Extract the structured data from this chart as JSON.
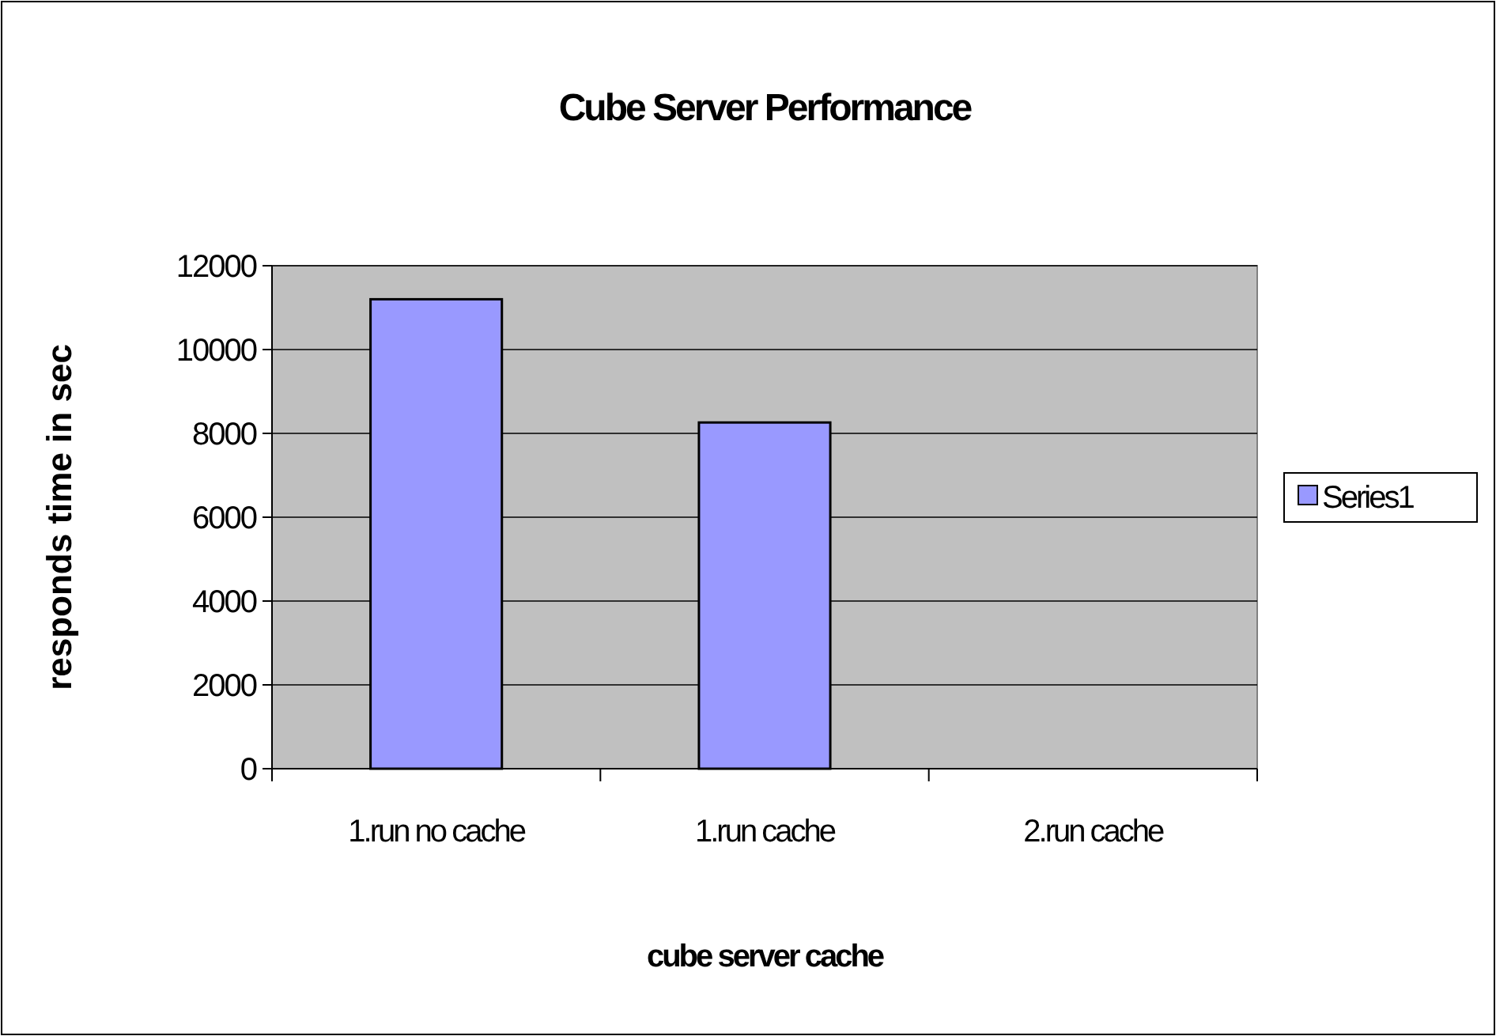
{
  "chart_data": {
    "type": "bar",
    "title": "Cube Server Performance",
    "xlabel": "cube server cache",
    "ylabel": "responds time in sec",
    "categories": [
      "1.run no cache",
      "1.run cache",
      "2.run cache"
    ],
    "series": [
      {
        "name": "Series1",
        "color": "#9999ff",
        "values": [
          11200,
          8260,
          null
        ]
      }
    ],
    "ylim": [
      0,
      12000
    ],
    "yticks": [
      0,
      2000,
      4000,
      6000,
      8000,
      10000,
      12000
    ],
    "grid": "y",
    "legend": "right"
  }
}
